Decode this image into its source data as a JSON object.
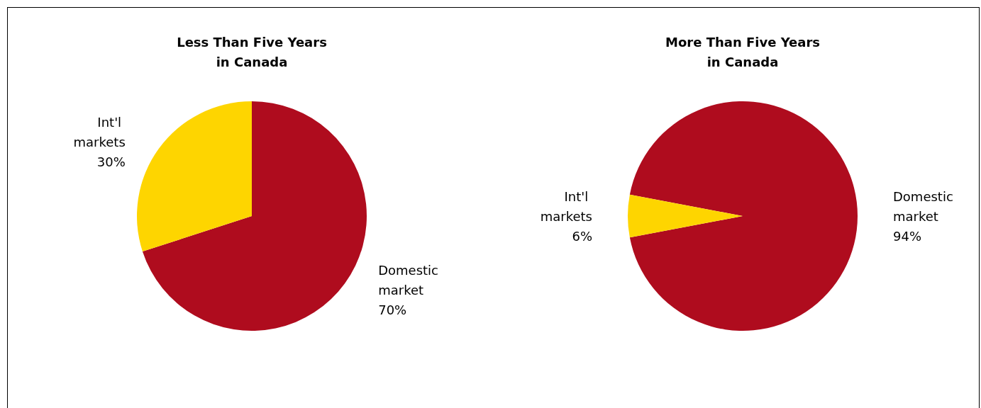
{
  "chart_data": [
    {
      "type": "pie",
      "title": "Less Than Five Years\nin Canada",
      "categories": [
        "Domestic market",
        "Int'l markets"
      ],
      "values": [
        70,
        30
      ],
      "colors": [
        "#af0c1e",
        "#fed500"
      ],
      "value_labels": [
        "70%",
        "30%"
      ]
    },
    {
      "type": "pie",
      "title": "More Than Five Years\nin Canada",
      "categories": [
        "Domestic market",
        "Int'l markets"
      ],
      "values": [
        94,
        6
      ],
      "colors": [
        "#af0c1e",
        "#fed500"
      ],
      "value_labels": [
        "94%",
        "6%"
      ]
    }
  ]
}
